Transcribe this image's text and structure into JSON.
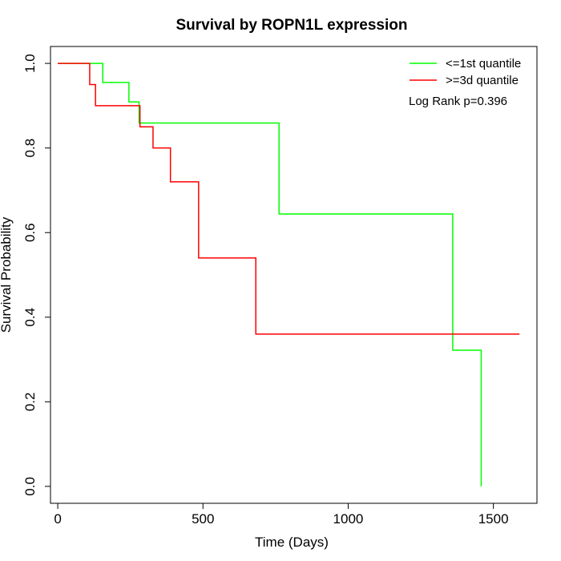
{
  "chart_data": {
    "type": "line",
    "title": "Survival by ROPN1L expression",
    "xlabel": "Time (Days)",
    "ylabel": "Survival Probability",
    "xlim": [
      -25,
      1650
    ],
    "ylim": [
      -0.04,
      1.04
    ],
    "x_ticks": [
      0,
      500,
      1000,
      1500
    ],
    "x_tick_labels": [
      "0",
      "500",
      "1000",
      "1500"
    ],
    "y_ticks": [
      0.0,
      0.2,
      0.4,
      0.6,
      0.8,
      1.0
    ],
    "y_tick_labels": [
      "0.0",
      "0.2",
      "0.4",
      "0.6",
      "0.8",
      "1.0"
    ],
    "grid": false,
    "legend_position": "top-right",
    "annotation": "Log Rank p=0.396",
    "series": [
      {
        "name": "<=1st quantile",
        "color": "#00ff00",
        "step": true,
        "points": [
          [
            0,
            1.0
          ],
          [
            155,
            1.0
          ],
          [
            155,
            0.955
          ],
          [
            245,
            0.955
          ],
          [
            245,
            0.909
          ],
          [
            280,
            0.909
          ],
          [
            280,
            0.859
          ],
          [
            762,
            0.859
          ],
          [
            762,
            0.644
          ],
          [
            1360,
            0.644
          ],
          [
            1360,
            0.322
          ],
          [
            1458,
            0.322
          ],
          [
            1458,
            0.0
          ]
        ]
      },
      {
        "name": ">=3d quantile",
        "color": "#ff0000",
        "step": true,
        "points": [
          [
            0,
            1.0
          ],
          [
            110,
            1.0
          ],
          [
            110,
            0.95
          ],
          [
            130,
            0.95
          ],
          [
            130,
            0.9
          ],
          [
            283,
            0.9
          ],
          [
            283,
            0.85
          ],
          [
            328,
            0.85
          ],
          [
            328,
            0.8
          ],
          [
            388,
            0.8
          ],
          [
            388,
            0.72
          ],
          [
            485,
            0.72
          ],
          [
            485,
            0.54
          ],
          [
            682,
            0.54
          ],
          [
            682,
            0.36
          ],
          [
            1590,
            0.36
          ]
        ]
      }
    ]
  }
}
